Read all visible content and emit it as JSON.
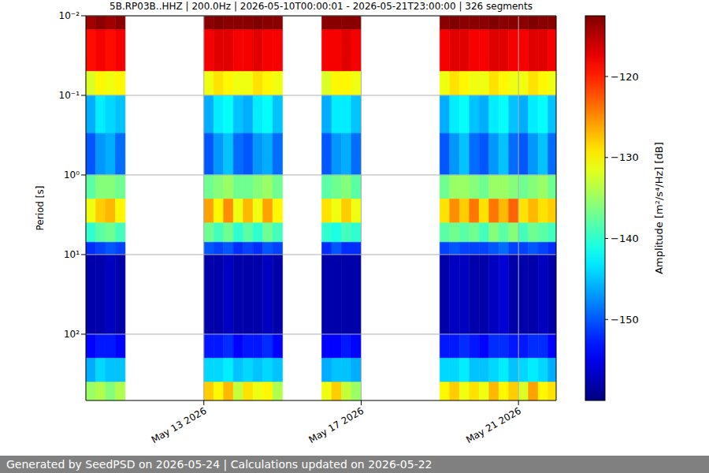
{
  "chart_data": {
    "type": "heatmap",
    "title": "5B.RP03B..HHZ | 200.0Hz | 2026-05-10T00:00:01 - 2026-05-21T23:00:00 | 326 segments",
    "y_label": "Period [s]",
    "footer": "Generated by SeedPSD on 2026-05-24 | Calculations updated on 2026-05-22",
    "log": "y",
    "grid": true,
    "xlim": [
      "2026-05-10T00:00",
      "2026-05-21T23:00"
    ],
    "xticks": [
      {
        "value": "2026-05-13",
        "label": "May 13 2026"
      },
      {
        "value": "2026-05-17",
        "label": "May 17 2026"
      },
      {
        "value": "2026-05-21",
        "label": "May 21 2026"
      }
    ],
    "ylim": [
      0.01,
      680
    ],
    "yticks": [
      {
        "value": 0.01,
        "label": "10⁻²"
      },
      {
        "value": 0.1,
        "label": "10⁻¹"
      },
      {
        "value": 1,
        "label": "10⁰"
      },
      {
        "value": 10,
        "label": "10¹"
      },
      {
        "value": 100,
        "label": "10²"
      }
    ],
    "y_bins": [
      0.01,
      0.015,
      0.05,
      0.1,
      0.3,
      1,
      2,
      4,
      7,
      10,
      100,
      200,
      400,
      680
    ],
    "cells": [
      {
        "start": "2026-05-10T00:00",
        "end": "2026-05-10T06:00",
        "values": [
          -114,
          -119,
          -132,
          -146,
          -150,
          -138,
          -131,
          -140,
          -152,
          -158,
          -154,
          -146,
          -135
        ]
      },
      {
        "start": "2026-05-10T06:00",
        "end": "2026-05-10T12:00",
        "values": [
          -113,
          -118,
          -130,
          -143,
          -147,
          -136,
          -128,
          -138,
          -151,
          -158,
          -153,
          -144,
          -134
        ]
      },
      {
        "start": "2026-05-10T12:00",
        "end": "2026-05-10T18:00",
        "values": [
          -114,
          -119,
          -131,
          -144,
          -146,
          -136,
          -127,
          -137,
          -150,
          -157,
          -153,
          -145,
          -136
        ]
      },
      {
        "start": "2026-05-10T18:00",
        "end": "2026-05-11T00:00",
        "values": [
          -113,
          -118,
          -130,
          -145,
          -149,
          -137,
          -130,
          -139,
          -151,
          -158,
          -154,
          -145,
          -134
        ]
      },
      {
        "start": "2026-05-13T00:00",
        "end": "2026-05-13T06:00",
        "values": [
          -113,
          -118,
          -131,
          -146,
          -150,
          -137,
          -126,
          -137,
          -150,
          -158,
          -153,
          -144,
          -128
        ]
      },
      {
        "start": "2026-05-13T06:00",
        "end": "2026-05-13T12:00",
        "values": [
          -112.5,
          -117,
          -129,
          -143,
          -147,
          -136,
          -130,
          -139,
          -151,
          -158,
          -153,
          -144,
          -130
        ]
      },
      {
        "start": "2026-05-13T12:00",
        "end": "2026-05-13T18:00",
        "values": [
          -113,
          -117,
          -130,
          -142,
          -145,
          -135,
          -125,
          -137,
          -150,
          -157,
          -152,
          -143,
          -127
        ]
      },
      {
        "start": "2026-05-13T18:00",
        "end": "2026-05-14T00:00",
        "values": [
          -113,
          -118,
          -131,
          -145,
          -149,
          -137,
          -131,
          -140,
          -152,
          -158,
          -154,
          -145,
          -133
        ]
      },
      {
        "start": "2026-05-14T00:00",
        "end": "2026-05-14T06:00",
        "values": [
          -113,
          -118,
          -131,
          -146,
          -150,
          -137,
          -127,
          -138,
          -151,
          -158,
          -153,
          -144,
          -129
        ]
      },
      {
        "start": "2026-05-14T06:00",
        "end": "2026-05-14T12:00",
        "values": [
          -112.5,
          -117,
          -129,
          -143,
          -147,
          -136,
          -131,
          -140,
          -152,
          -158,
          -153,
          -145,
          -131
        ]
      },
      {
        "start": "2026-05-14T12:00",
        "end": "2026-05-14T18:00",
        "values": [
          -113,
          -118,
          -130,
          -142,
          -146,
          -135,
          -126,
          -137,
          -150,
          -157,
          -152,
          -144,
          -130
        ]
      },
      {
        "start": "2026-05-14T18:00",
        "end": "2026-05-15T00:00",
        "values": [
          -113,
          -118,
          -131,
          -145,
          -149,
          -137,
          -130,
          -139,
          -151,
          -158,
          -154,
          -145,
          -134
        ]
      },
      {
        "start": "2026-05-16T00:00",
        "end": "2026-05-16T06:00",
        "values": [
          -113,
          -118,
          -132,
          -146,
          -150,
          -138,
          -129,
          -140,
          -152,
          -158,
          -154,
          -146,
          -131
        ]
      },
      {
        "start": "2026-05-16T06:00",
        "end": "2026-05-16T12:00",
        "values": [
          -113,
          -118,
          -130,
          -143,
          -147,
          -137,
          -131,
          -141,
          -150,
          -158,
          -154,
          -145,
          -128
        ]
      },
      {
        "start": "2026-05-16T12:00",
        "end": "2026-05-16T18:00",
        "values": [
          -113,
          -117,
          -130,
          -143,
          -146,
          -136,
          -128,
          -139,
          -152,
          -158,
          -153,
          -145,
          -133
        ]
      },
      {
        "start": "2026-05-16T18:00",
        "end": "2026-05-17T00:00",
        "values": [
          -113,
          -118,
          -131,
          -145,
          -149,
          -138,
          -131,
          -140,
          -152,
          -158,
          -154,
          -146,
          -135
        ]
      },
      {
        "start": "2026-05-19T00:00",
        "end": "2026-05-19T06:00",
        "values": [
          -113,
          -118,
          -131,
          -146,
          -150,
          -137,
          -129,
          -138,
          -151,
          -158,
          -153,
          -144,
          -130
        ]
      },
      {
        "start": "2026-05-19T06:00",
        "end": "2026-05-19T12:00",
        "values": [
          -112.5,
          -117,
          -129,
          -143,
          -147,
          -135,
          -125,
          -137,
          -150,
          -157,
          -153,
          -144,
          -128
        ]
      },
      {
        "start": "2026-05-19T12:00",
        "end": "2026-05-19T18:00",
        "values": [
          -113,
          -117,
          -130,
          -142,
          -145,
          -135,
          -128,
          -138,
          -151,
          -157,
          -152,
          -143,
          -131
        ]
      },
      {
        "start": "2026-05-19T18:00",
        "end": "2026-05-20T00:00",
        "values": [
          -113,
          -118,
          -131,
          -145,
          -149,
          -136,
          -124,
          -137,
          -151,
          -158,
          -153,
          -145,
          -129
        ]
      },
      {
        "start": "2026-05-20T00:00",
        "end": "2026-05-20T06:00",
        "values": [
          -113,
          -118,
          -131,
          -146,
          -150,
          -137,
          -129,
          -139,
          -151,
          -158,
          -154,
          -145,
          -131
        ]
      },
      {
        "start": "2026-05-20T06:00",
        "end": "2026-05-20T12:00",
        "values": [
          -112.5,
          -117,
          -129,
          -143,
          -147,
          -135,
          -124,
          -136,
          -150,
          -157,
          -152,
          -144,
          -127
        ]
      },
      {
        "start": "2026-05-20T12:00",
        "end": "2026-05-20T18:00",
        "values": [
          -113,
          -117,
          -130,
          -142,
          -145,
          -135,
          -127,
          -138,
          -149,
          -156,
          -152,
          -143,
          -130
        ]
      },
      {
        "start": "2026-05-20T18:00",
        "end": "2026-05-21T00:00",
        "values": [
          -113,
          -118,
          -131,
          -145,
          -149,
          -136,
          -123,
          -136,
          -151,
          -158,
          -153,
          -145,
          -128
        ]
      },
      {
        "start": "2026-05-21T00:00",
        "end": "2026-05-21T06:00",
        "values": [
          -113,
          -118,
          -131,
          -146,
          -150,
          -137,
          -129,
          -139,
          -151,
          -158,
          -153,
          -144,
          -132
        ]
      },
      {
        "start": "2026-05-21T06:00",
        "end": "2026-05-21T12:00",
        "values": [
          -112.5,
          -117,
          -129,
          -143,
          -147,
          -136,
          -127,
          -137,
          -150,
          -158,
          -152,
          -143,
          -126
        ]
      },
      {
        "start": "2026-05-21T12:00",
        "end": "2026-05-21T18:00",
        "values": [
          -113,
          -117,
          -130,
          -142,
          -145,
          -135,
          -129,
          -138,
          -151,
          -157,
          -152,
          -144,
          -130
        ]
      },
      {
        "start": "2026-05-21T18:00",
        "end": "2026-05-21T23:00",
        "values": [
          -113,
          -118,
          -131,
          -145,
          -149,
          -137,
          -128,
          -139,
          -152,
          -158,
          -154,
          -146,
          -129
        ]
      }
    ],
    "colorbar": {
      "label": "Amplitude [m²/s⁴/Hz] [dB]",
      "range": [
        -160,
        -112.5
      ],
      "ticks": [
        {
          "value": -150,
          "label": "−150"
        },
        {
          "value": -140,
          "label": "−140"
        },
        {
          "value": -130,
          "label": "−130"
        },
        {
          "value": -120,
          "label": "−120"
        }
      ]
    }
  }
}
